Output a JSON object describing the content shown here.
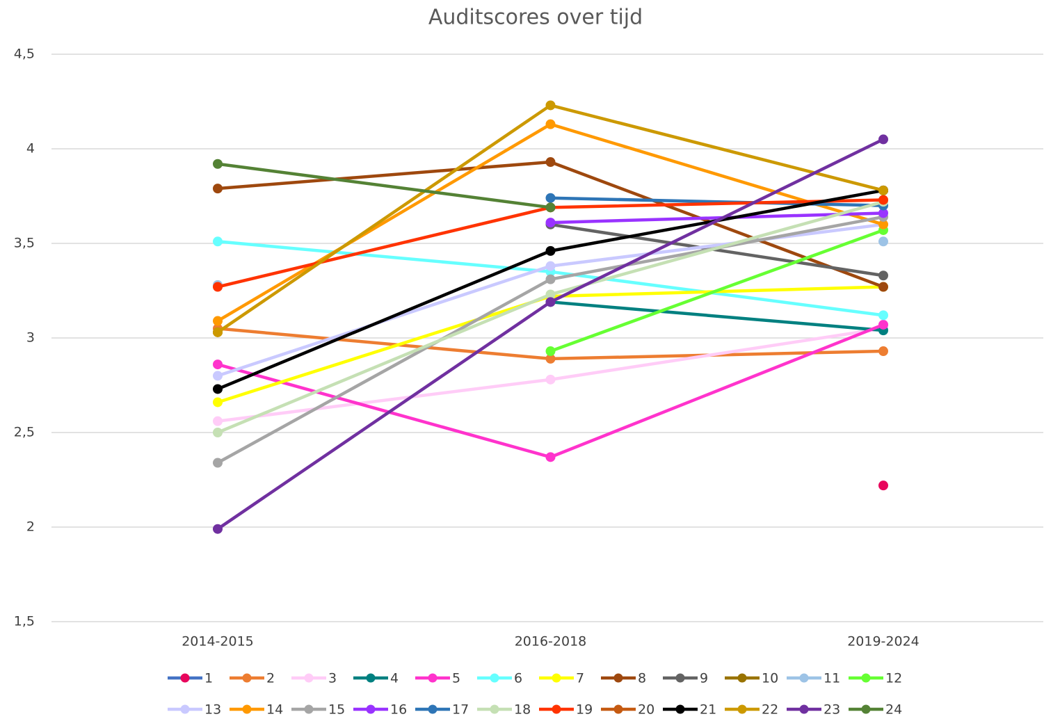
{
  "chart_data": {
    "type": "line",
    "title": "Auditscores over tijd",
    "categories": [
      "2014-2015",
      "2016-2018",
      "2019-2024"
    ],
    "ylim": [
      1.5,
      4.5
    ],
    "yticks": [
      {
        "value": 1.5,
        "label": "1,5"
      },
      2,
      {
        "value": 2.5,
        "label": "2,5"
      },
      3,
      {
        "value": 3.5,
        "label": "3,5"
      },
      4,
      {
        "value": 4.5,
        "label": "4,5"
      }
    ],
    "grid": true,
    "legend": "bottom",
    "series": [
      {
        "name": "1",
        "color": "#4472c4",
        "marker_color": "#e8065c",
        "values": [
          null,
          null,
          2.22
        ]
      },
      {
        "name": "2",
        "color": "#ed7d31",
        "values": [
          3.05,
          2.89,
          2.93
        ]
      },
      {
        "name": "3",
        "color": "#ffccf7",
        "values": [
          2.56,
          2.78,
          3.05
        ]
      },
      {
        "name": "4",
        "color": "#008080",
        "values": [
          null,
          3.19,
          3.04
        ]
      },
      {
        "name": "5",
        "color": "#ff33cc",
        "values": [
          2.86,
          2.37,
          3.07
        ]
      },
      {
        "name": "6",
        "color": "#66ffff",
        "values": [
          3.51,
          3.35,
          3.12
        ]
      },
      {
        "name": "7",
        "color": "#ffff00",
        "values": [
          2.66,
          3.22,
          3.27
        ]
      },
      {
        "name": "8",
        "color": "#9e480e",
        "values": [
          3.79,
          3.93,
          3.27
        ]
      },
      {
        "name": "9",
        "color": "#636363",
        "values": [
          null,
          3.6,
          3.33
        ]
      },
      {
        "name": "10",
        "color": "#997300",
        "values": [
          3.03,
          null,
          3.78
        ]
      },
      {
        "name": "11",
        "color": "#9dc3e6",
        "values": [
          3.28,
          null,
          3.51
        ]
      },
      {
        "name": "12",
        "color": "#66ff33",
        "values": [
          null,
          2.93,
          3.57
        ]
      },
      {
        "name": "13",
        "color": "#c9c9ff",
        "values": [
          2.8,
          3.38,
          3.6
        ]
      },
      {
        "name": "14",
        "color": "#ff9900",
        "values": [
          3.09,
          4.13,
          3.6
        ]
      },
      {
        "name": "15",
        "color": "#a5a5a5",
        "values": [
          2.34,
          3.31,
          3.64
        ]
      },
      {
        "name": "16",
        "color": "#9933ff",
        "values": [
          null,
          3.61,
          3.66
        ]
      },
      {
        "name": "17",
        "color": "#2e75b6",
        "values": [
          null,
          3.74,
          3.7
        ]
      },
      {
        "name": "18",
        "color": "#c5e0b4",
        "values": [
          2.5,
          3.23,
          3.72
        ]
      },
      {
        "name": "19",
        "color": "#ff3300",
        "values": [
          3.27,
          3.69,
          3.73
        ]
      },
      {
        "name": "20",
        "color": "#c55a11",
        "values": [
          null,
          null,
          null
        ]
      },
      {
        "name": "21",
        "color": "#000000",
        "values": [
          2.73,
          3.46,
          3.78
        ]
      },
      {
        "name": "22",
        "color": "#cc9900",
        "values": [
          3.03,
          4.23,
          3.78
        ]
      },
      {
        "name": "23",
        "color": "#7030a0",
        "values": [
          1.99,
          3.19,
          4.05
        ]
      },
      {
        "name": "24",
        "color": "#548235",
        "values": [
          3.92,
          3.69,
          null
        ]
      }
    ]
  }
}
